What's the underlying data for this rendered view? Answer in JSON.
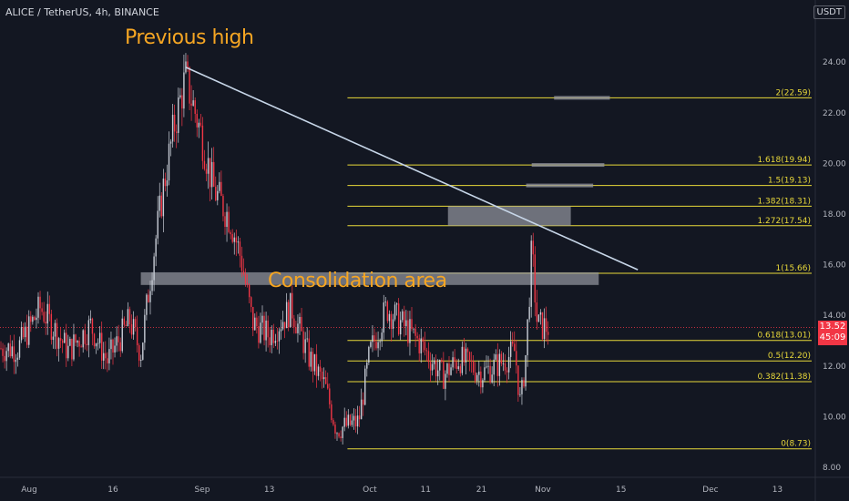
{
  "header": {
    "symbol": "ALICE / TetherUS, 4h, BINANCE",
    "currency": "USDT"
  },
  "annotations": {
    "previous_high": "Previous high",
    "consolidation": "Consolidation area"
  },
  "last_price": {
    "value": "13.52",
    "countdown": "45:09"
  },
  "colors": {
    "background": "#131722",
    "bull": "#c8cdd6",
    "bear": "#f23645",
    "fib": "#e8d83a",
    "annotation": "#f6a623",
    "trendline": "#c7d6e8"
  },
  "chart_data": {
    "type": "candlestick",
    "y_axis": {
      "ticks": [
        "8.00",
        "10.00",
        "12.00",
        "14.00",
        "16.00",
        "18.00",
        "20.00",
        "22.00",
        "24.00"
      ],
      "range": [
        7.5,
        25.5
      ]
    },
    "x_axis": {
      "ticks": [
        "Aug",
        "16",
        "Sep",
        "13",
        "Oct",
        "11",
        "21",
        "Nov",
        "15",
        "Dec",
        "13"
      ]
    },
    "fib_levels": [
      {
        "ratio": "0",
        "price": 8.73,
        "label": "0(8.73)"
      },
      {
        "ratio": "0.382",
        "price": 11.38,
        "label": "0.382(11.38)"
      },
      {
        "ratio": "0.5",
        "price": 12.2,
        "label": "0.5(12.20)"
      },
      {
        "ratio": "0.618",
        "price": 13.01,
        "label": "0.618(13.01)"
      },
      {
        "ratio": "1",
        "price": 15.66,
        "label": "1(15.66)"
      },
      {
        "ratio": "1.272",
        "price": 17.54,
        "label": "1.272(17.54)"
      },
      {
        "ratio": "1.382",
        "price": 18.31,
        "label": "1.382(18.31)"
      },
      {
        "ratio": "1.5",
        "price": 19.13,
        "label": "1.5(19.13)"
      },
      {
        "ratio": "1.618",
        "price": 19.94,
        "label": "1.618(19.94)"
      },
      {
        "ratio": "2",
        "price": 22.59,
        "label": "2(22.59)"
      }
    ],
    "zones": [
      {
        "name": "consolidation",
        "from": "Aug 21",
        "to": "Nov 11",
        "low": 15.2,
        "high": 15.7
      },
      {
        "name": "target-1.272",
        "from": "Oct 15",
        "to": "Nov 6",
        "low": 17.54,
        "high": 18.31
      },
      {
        "name": "target-1.5",
        "from": "Oct 29",
        "to": "Nov 10",
        "low": 19.13,
        "high": 19.13
      },
      {
        "name": "target-1.618",
        "from": "Oct 30",
        "to": "Nov 12",
        "low": 19.94,
        "high": 19.94
      },
      {
        "name": "target-2",
        "from": "Nov 3",
        "to": "Nov 13",
        "low": 22.59,
        "high": 22.59
      }
    ],
    "trendline": {
      "from": {
        "date": "Aug 29",
        "price": 23.8
      },
      "to": {
        "date": "Nov 18",
        "price": 15.8
      }
    },
    "last_price": 13.52,
    "candles_keypoints": [
      {
        "date": "Jul 30",
        "price": 12.7
      },
      {
        "date": "Aug 3",
        "price": 14.3
      },
      {
        "date": "Aug 8",
        "price": 12.6
      },
      {
        "date": "Aug 12",
        "price": 13.6
      },
      {
        "date": "Aug 15",
        "price": 12.2
      },
      {
        "date": "Aug 19",
        "price": 13.8
      },
      {
        "date": "Aug 21",
        "price": 12.5
      },
      {
        "date": "Aug 23",
        "price": 16.0
      },
      {
        "date": "Aug 25",
        "price": 19.0
      },
      {
        "date": "Aug 27",
        "price": 21.5
      },
      {
        "date": "Aug 29",
        "price": 23.4
      },
      {
        "date": "Sep 1",
        "price": 21.0
      },
      {
        "date": "Sep 3",
        "price": 19.0
      },
      {
        "date": "Sep 6",
        "price": 17.8
      },
      {
        "date": "Sep 8",
        "price": 16.2
      },
      {
        "date": "Sep 10",
        "price": 13.7
      },
      {
        "date": "Sep 13",
        "price": 13.2
      },
      {
        "date": "Sep 17",
        "price": 14.3
      },
      {
        "date": "Sep 20",
        "price": 12.4
      },
      {
        "date": "Sep 23",
        "price": 11.2
      },
      {
        "date": "Sep 25",
        "price": 9.5
      },
      {
        "date": "Sep 29",
        "price": 9.8
      },
      {
        "date": "Oct 1",
        "price": 12.5
      },
      {
        "date": "Oct 4",
        "price": 14.3
      },
      {
        "date": "Oct 7",
        "price": 13.6
      },
      {
        "date": "Oct 10",
        "price": 12.9
      },
      {
        "date": "Oct 14",
        "price": 11.6
      },
      {
        "date": "Oct 17",
        "price": 12.3
      },
      {
        "date": "Oct 21",
        "price": 11.7
      },
      {
        "date": "Oct 25",
        "price": 12.2
      },
      {
        "date": "Oct 27",
        "price": 12.6
      },
      {
        "date": "Oct 28",
        "price": 10.4
      },
      {
        "date": "Oct 29",
        "price": 12.6
      },
      {
        "date": "Oct 30",
        "price": 16.6
      },
      {
        "date": "Oct 31",
        "price": 13.6
      },
      {
        "date": "Nov 2",
        "price": 13.52
      }
    ]
  }
}
